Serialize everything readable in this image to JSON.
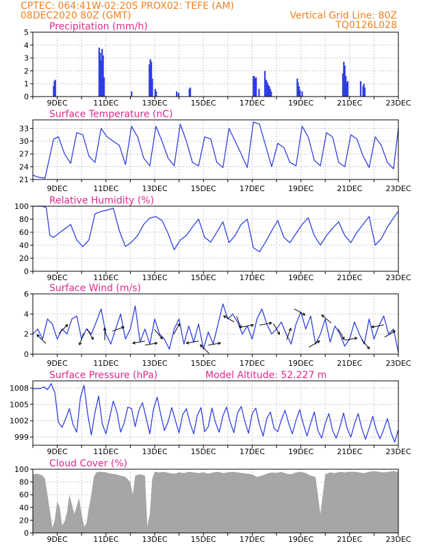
{
  "header": {
    "line1_left": "CPTEC:   064:41W-02:20S   PROX02: TEFE (AM)",
    "line2_left": "08DEC2020 80Z (GMT)",
    "line1_right": "Vertical Grid Line: 80Z",
    "line2_right": "TQ0126L028",
    "color": "#f07f1e"
  },
  "colors": {
    "title": "#e0288e",
    "line": "#2d3fe0",
    "bars": "#2d3fe0",
    "cloud": "#a6a6a6",
    "axis": "#000000",
    "grid": "#9a9a9a"
  },
  "x_axis": {
    "start_day": 8,
    "end_day": 23,
    "tick_labels": [
      "9DEC",
      "11DEC",
      "13DEC",
      "15DEC",
      "17DEC",
      "19DEC",
      "21DEC",
      "23DEC"
    ]
  },
  "chart_data": [
    {
      "type": "bar",
      "title": "Precipitation (mm/h)",
      "ylim": [
        0,
        5
      ],
      "yticks": [
        "0",
        "1",
        "2",
        "3",
        "4",
        "5"
      ],
      "x": [
        8.85,
        8.88,
        8.92,
        10.72,
        10.76,
        10.8,
        10.84,
        10.88,
        10.92,
        12.05,
        12.78,
        12.82,
        12.86,
        12.9,
        13.02,
        13.06,
        13.9,
        13.98,
        14.42,
        14.46,
        17.05,
        17.08,
        17.12,
        17.16,
        17.28,
        17.52,
        17.58,
        17.62,
        17.66,
        17.7,
        17.74,
        17.78,
        18.85,
        18.88,
        18.92,
        18.96,
        19.05,
        20.72,
        20.76,
        20.8,
        20.84,
        20.88,
        20.92,
        21.45,
        21.55,
        21.58,
        21.62
      ],
      "values": [
        0.8,
        1.2,
        1.3,
        3.8,
        3.4,
        2.8,
        3.7,
        3.2,
        1.5,
        0.4,
        2.5,
        2.9,
        2.7,
        1.4,
        0.6,
        0.4,
        0.4,
        0.3,
        0.6,
        0.7,
        1.6,
        1.6,
        1.4,
        1.5,
        0.6,
        2.0,
        1.3,
        1.1,
        0.9,
        0.8,
        0.6,
        0.4,
        1.4,
        1.1,
        0.8,
        0.5,
        0.4,
        1.8,
        2.7,
        2.4,
        1.6,
        1.1,
        1.2,
        1.2,
        0.8,
        1.0,
        0.7
      ]
    },
    {
      "type": "line",
      "title": "Surface Temperature (nC)",
      "ylim": [
        21,
        35
      ],
      "yticks": [
        "21",
        "24",
        "27",
        "30",
        "33"
      ],
      "x": [
        8.0,
        8.25,
        8.5,
        8.85,
        9.05,
        9.3,
        9.55,
        9.8,
        10.05,
        10.3,
        10.55,
        10.8,
        11.05,
        11.3,
        11.55,
        11.8,
        12.05,
        12.3,
        12.55,
        12.8,
        13.05,
        13.3,
        13.55,
        13.8,
        14.05,
        14.3,
        14.55,
        14.8,
        15.05,
        15.3,
        15.55,
        15.8,
        16.05,
        16.3,
        16.55,
        16.8,
        17.05,
        17.3,
        17.55,
        17.8,
        18.05,
        18.3,
        18.55,
        18.8,
        19.05,
        19.3,
        19.55,
        19.8,
        20.05,
        20.3,
        20.55,
        20.8,
        21.05,
        21.3,
        21.55,
        21.8,
        22.05,
        22.3,
        22.55,
        22.8,
        23.0
      ],
      "values": [
        22,
        21.5,
        21.3,
        30.5,
        31,
        27,
        24.8,
        32,
        31.5,
        26.5,
        25,
        33,
        31,
        30,
        29,
        24.5,
        33.5,
        31,
        26,
        24.2,
        33.5,
        30,
        26,
        24.2,
        34,
        30,
        25,
        24.2,
        31,
        30.5,
        25,
        23.8,
        33,
        30,
        27,
        23.8,
        34.5,
        34,
        29,
        24,
        29.5,
        28.5,
        25,
        24.2,
        33.5,
        31,
        25.5,
        24.2,
        32,
        31,
        25,
        24,
        31.5,
        30.5,
        26.5,
        23.8,
        31,
        29,
        25,
        23.5,
        33
      ]
    },
    {
      "type": "line",
      "title": "Relative Humidity (%)",
      "ylim": [
        0,
        100
      ],
      "yticks": [
        "0",
        "20",
        "40",
        "60",
        "80",
        "100"
      ],
      "x": [
        8.0,
        8.35,
        8.55,
        8.7,
        8.85,
        9.05,
        9.3,
        9.55,
        9.8,
        10.05,
        10.3,
        10.55,
        10.8,
        11.05,
        11.3,
        11.55,
        11.8,
        12.05,
        12.3,
        12.55,
        12.8,
        13.05,
        13.3,
        13.55,
        13.8,
        14.05,
        14.3,
        14.55,
        14.8,
        15.05,
        15.3,
        15.55,
        15.8,
        16.05,
        16.3,
        16.55,
        16.8,
        17.05,
        17.3,
        17.55,
        17.8,
        18.05,
        18.3,
        18.55,
        18.8,
        19.05,
        19.3,
        19.55,
        19.8,
        20.05,
        20.3,
        20.55,
        20.8,
        21.05,
        21.3,
        21.55,
        21.8,
        22.05,
        22.3,
        22.55,
        22.8,
        23.0
      ],
      "values": [
        100,
        100,
        98,
        55,
        52,
        58,
        65,
        72,
        48,
        38,
        48,
        88,
        92,
        94,
        97,
        62,
        38,
        45,
        55,
        72,
        82,
        84,
        78,
        58,
        33,
        48,
        55,
        68,
        80,
        52,
        45,
        60,
        76,
        44,
        55,
        72,
        80,
        36,
        30,
        45,
        62,
        78,
        52,
        44,
        58,
        72,
        82,
        55,
        40,
        55,
        66,
        76,
        55,
        44,
        60,
        72,
        84,
        40,
        50,
        68,
        82,
        92
      ]
    },
    {
      "type": "line",
      "title": "Surface Wind (m/s)",
      "ylim": [
        0,
        6
      ],
      "yticks": [
        "0",
        "2",
        "4",
        "6"
      ],
      "x": [
        8.0,
        8.2,
        8.4,
        8.6,
        8.8,
        9.0,
        9.2,
        9.4,
        9.6,
        9.8,
        10.0,
        10.2,
        10.4,
        10.6,
        10.8,
        11.0,
        11.2,
        11.4,
        11.6,
        11.8,
        12.0,
        12.2,
        12.4,
        12.6,
        12.8,
        13.0,
        13.2,
        13.4,
        13.6,
        13.8,
        14.0,
        14.2,
        14.4,
        14.6,
        14.8,
        15.0,
        15.2,
        15.4,
        15.6,
        15.8,
        16.0,
        16.2,
        16.4,
        16.6,
        16.8,
        17.0,
        17.2,
        17.4,
        17.6,
        17.8,
        18.0,
        18.2,
        18.4,
        18.6,
        18.8,
        19.0,
        19.2,
        19.4,
        19.6,
        19.8,
        20.0,
        20.2,
        20.4,
        20.6,
        20.8,
        21.0,
        21.2,
        21.4,
        21.6,
        21.8,
        22.0,
        22.2,
        22.4,
        22.6,
        22.8,
        23.0
      ],
      "values": [
        2.0,
        2.5,
        1.5,
        3.5,
        3.0,
        1.5,
        2.5,
        2.0,
        3.5,
        3.8,
        1.5,
        2.5,
        2.0,
        3.2,
        4.5,
        2.0,
        1.0,
        2.5,
        4.0,
        1.5,
        2.5,
        4.8,
        1.2,
        2.5,
        1.0,
        3.5,
        2.0,
        1.5,
        0.5,
        2.5,
        3.5,
        1.0,
        2.8,
        1.2,
        3.0,
        0.5,
        2.2,
        1.0,
        3.0,
        5.0,
        3.5,
        4.0,
        3.2,
        2.0,
        2.8,
        1.5,
        3.5,
        4.5,
        3.0,
        2.0,
        2.5,
        3.2,
        2.0,
        1.0,
        3.0,
        4.2,
        2.5,
        3.8,
        1.0,
        2.0,
        3.5,
        1.2,
        2.8,
        2.0,
        0.8,
        1.5,
        3.2,
        2.0,
        1.0,
        3.5,
        1.5,
        2.8,
        3.8,
        2.0,
        2.5,
        0.2
      ],
      "arrows": [
        {
          "day": 8.35,
          "deg": 315
        },
        {
          "day": 9.25,
          "deg": 45
        },
        {
          "day": 10.0,
          "deg": 200
        },
        {
          "day": 10.35,
          "deg": 150
        },
        {
          "day": 10.95,
          "deg": 0
        },
        {
          "day": 11.5,
          "deg": 70
        },
        {
          "day": 12.35,
          "deg": 260
        },
        {
          "day": 12.85,
          "deg": 80
        },
        {
          "day": 13.15,
          "deg": 140
        },
        {
          "day": 13.9,
          "deg": 30
        },
        {
          "day": 14.55,
          "deg": 260
        },
        {
          "day": 15.05,
          "deg": 315
        },
        {
          "day": 15.45,
          "deg": 80
        },
        {
          "day": 16.05,
          "deg": 300
        },
        {
          "day": 16.45,
          "deg": 160
        },
        {
          "day": 16.8,
          "deg": 80
        },
        {
          "day": 17.55,
          "deg": 80
        },
        {
          "day": 18.0,
          "deg": 150
        },
        {
          "day": 18.5,
          "deg": 20
        },
        {
          "day": 18.95,
          "deg": 120
        },
        {
          "day": 19.55,
          "deg": 60
        },
        {
          "day": 20.05,
          "deg": 310
        },
        {
          "day": 20.65,
          "deg": 150
        },
        {
          "day": 21.05,
          "deg": 80
        },
        {
          "day": 21.65,
          "deg": 140
        },
        {
          "day": 22.15,
          "deg": 260
        },
        {
          "day": 22.65,
          "deg": 60
        }
      ]
    },
    {
      "type": "line",
      "title": "Surface Pressure (hPa)",
      "annotation": "Model Altitude: 52.227 m",
      "ylim": [
        997.5,
        1009.3
      ],
      "yticks": [
        "999",
        "1002",
        "1005",
        "1008"
      ],
      "x": [
        8.0,
        8.15,
        8.3,
        8.45,
        8.6,
        8.75,
        8.9,
        9.05,
        9.2,
        9.35,
        9.5,
        9.65,
        9.8,
        9.95,
        10.1,
        10.25,
        10.4,
        10.55,
        10.7,
        10.85,
        11.0,
        11.15,
        11.3,
        11.45,
        11.6,
        11.75,
        11.9,
        12.05,
        12.2,
        12.35,
        12.5,
        12.65,
        12.8,
        12.95,
        13.1,
        13.25,
        13.4,
        13.55,
        13.7,
        13.85,
        14.0,
        14.15,
        14.3,
        14.45,
        14.6,
        14.75,
        14.9,
        15.05,
        15.2,
        15.35,
        15.5,
        15.65,
        15.8,
        15.95,
        16.1,
        16.25,
        16.4,
        16.55,
        16.7,
        16.85,
        17.0,
        17.15,
        17.3,
        17.45,
        17.6,
        17.75,
        17.9,
        18.05,
        18.2,
        18.35,
        18.5,
        18.65,
        18.8,
        18.95,
        19.1,
        19.25,
        19.4,
        19.55,
        19.7,
        19.85,
        20.0,
        20.15,
        20.3,
        20.45,
        20.6,
        20.75,
        20.9,
        21.05,
        21.2,
        21.35,
        21.5,
        21.65,
        21.8,
        21.95,
        22.1,
        22.25,
        22.4,
        22.55,
        22.7,
        22.85,
        23.0
      ],
      "values": [
        1007.8,
        1007.9,
        1007.9,
        1008.2,
        1007.7,
        1008.8,
        1007.2,
        1001.7,
        1000.8,
        1002.4,
        1004.2,
        1001.3,
        999.9,
        1006.2,
        1008.5,
        1003.2,
        999.4,
        1003.5,
        1006.5,
        1001.4,
        999.6,
        1002.5,
        1005.6,
        1003.6,
        999.9,
        1001.6,
        1004.5,
        1004.2,
        1000.9,
        1003.9,
        1005.3,
        1002.5,
        999.6,
        1004.1,
        1006.3,
        1003.1,
        1000.2,
        1001.8,
        1004.4,
        1002.0,
        999.8,
        1003.1,
        1004.2,
        1001.6,
        999.6,
        1003.0,
        1004.4,
        1000.0,
        1000.9,
        1004.3,
        1001.6,
        999.9,
        1002.9,
        1004.5,
        1001.7,
        999.8,
        1003.4,
        1004.6,
        1001.9,
        999.7,
        1003.3,
        1004.3,
        1001.3,
        999.2,
        1002.4,
        1003.6,
        1000.6,
        1000.0,
        1002.2,
        1003.9,
        1001.5,
        999.6,
        1002.1,
        1004.0,
        1001.4,
        999.2,
        1001.5,
        1003.6,
        1000.2,
        998.8,
        1001.5,
        1003.3,
        1000.2,
        998.8,
        1000.8,
        1003.4,
        1000.6,
        999.0,
        1001.4,
        1003.3,
        1000.6,
        998.6,
        1000.6,
        1002.8,
        1000.2,
        998.7,
        1000.4,
        1002.4,
        999.8,
        998.1,
        1000.4
      ]
    },
    {
      "type": "area",
      "title": "Cloud Cover (%)",
      "ylim": [
        0,
        100
      ],
      "yticks": [
        "0",
        "20",
        "40",
        "60",
        "80",
        "100"
      ],
      "x": [
        8.0,
        8.2,
        8.4,
        8.5,
        8.6,
        8.7,
        8.8,
        8.9,
        9.0,
        9.1,
        9.2,
        9.3,
        9.4,
        9.5,
        9.6,
        9.7,
        9.8,
        9.9,
        10.0,
        10.1,
        10.2,
        10.3,
        10.4,
        10.5,
        10.6,
        10.7,
        10.8,
        11.0,
        11.2,
        11.4,
        11.6,
        11.8,
        12.0,
        12.1,
        12.2,
        12.4,
        12.6,
        12.7,
        12.8,
        12.9,
        13.0,
        13.2,
        13.4,
        13.6,
        13.8,
        14.0,
        14.2,
        14.4,
        14.6,
        14.8,
        15.0,
        15.2,
        15.4,
        15.6,
        15.8,
        16.0,
        16.2,
        16.4,
        16.6,
        16.8,
        17.0,
        17.2,
        17.4,
        17.6,
        17.8,
        18.0,
        18.2,
        18.4,
        18.6,
        18.8,
        19.0,
        19.2,
        19.4,
        19.6,
        19.8,
        20.0,
        20.2,
        20.4,
        20.6,
        20.8,
        21.0,
        21.2,
        21.4,
        21.6,
        21.8,
        22.0,
        22.2,
        22.4,
        22.6,
        22.8,
        23.0
      ],
      "values": [
        92,
        93,
        90,
        85,
        60,
        35,
        8,
        20,
        50,
        40,
        12,
        18,
        32,
        60,
        45,
        30,
        42,
        55,
        30,
        10,
        15,
        40,
        60,
        88,
        95,
        96,
        96,
        95,
        93,
        92,
        90,
        88,
        80,
        60,
        90,
        92,
        90,
        10,
        30,
        85,
        96,
        95,
        96,
        94,
        93,
        95,
        94,
        96,
        95,
        94,
        95,
        93,
        95,
        96,
        94,
        95,
        96,
        95,
        94,
        93,
        92,
        88,
        90,
        93,
        95,
        94,
        96,
        93,
        92,
        95,
        96,
        94,
        90,
        88,
        30,
        92,
        95,
        94,
        96,
        95,
        96,
        96,
        95,
        94,
        96,
        97,
        96,
        95,
        96,
        97,
        96
      ]
    }
  ]
}
